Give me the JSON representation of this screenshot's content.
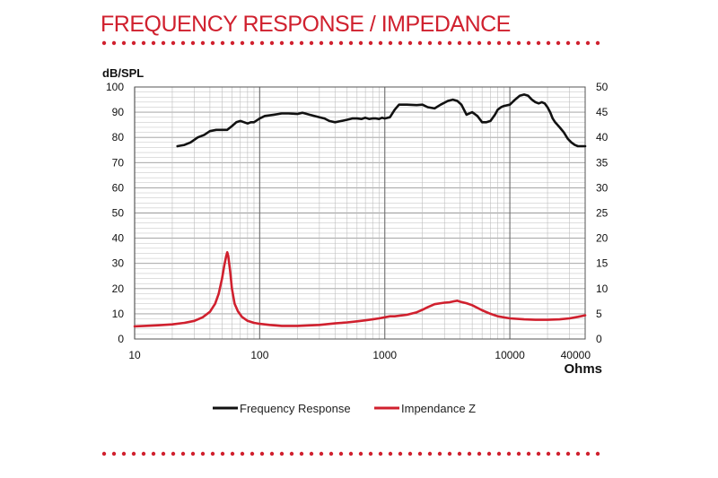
{
  "header": {
    "title": "FREQUENCY RESPONSE / IMPEDANCE"
  },
  "colors": {
    "accent": "#d0202e",
    "freq_line": "#111111",
    "impedance_line": "#d0202e",
    "grid": "#bdbdbd"
  },
  "chart_data": {
    "type": "line",
    "x_scale": "log",
    "xlim": [
      10,
      40000
    ],
    "ylim": [
      0,
      100
    ],
    "y2lim": [
      0,
      50
    ],
    "xlabel": "Ohms",
    "ylabel": "dB/SPL",
    "x_ticks": [
      10,
      100,
      1000,
      10000,
      40000
    ],
    "y_ticks": [
      0,
      10,
      20,
      30,
      40,
      50,
      60,
      70,
      80,
      90,
      100
    ],
    "y2_ticks": [
      0,
      5,
      10,
      15,
      20,
      25,
      30,
      35,
      40,
      45,
      50
    ],
    "legend": "bottom",
    "grid": true,
    "series": [
      {
        "name": "Frequency Response",
        "color": "#111111",
        "axis": "left",
        "x": [
          22,
          25,
          28,
          32,
          36,
          40,
          45,
          50,
          55,
          60,
          65,
          70,
          75,
          80,
          85,
          90,
          100,
          110,
          130,
          150,
          170,
          200,
          220,
          250,
          300,
          330,
          360,
          400,
          450,
          500,
          550,
          600,
          650,
          700,
          750,
          800,
          850,
          900,
          950,
          1000,
          1100,
          1200,
          1300,
          1500,
          1800,
          2000,
          2200,
          2500,
          2800,
          3200,
          3500,
          3800,
          4100,
          4500,
          5000,
          5500,
          6000,
          6500,
          7000,
          7600,
          8000,
          8500,
          9000,
          10000,
          11000,
          12000,
          13000,
          14000,
          15000,
          16000,
          17000,
          18000,
          19000,
          20000,
          21000,
          22000,
          23000,
          25000,
          27000,
          29000,
          31000,
          33000,
          35000,
          37000,
          40000
        ],
        "values": [
          76.5,
          77,
          78,
          80,
          81,
          82.5,
          83,
          83,
          83,
          84.5,
          86,
          86.5,
          86,
          85.5,
          86,
          86,
          87.5,
          88.5,
          89,
          89.5,
          89.5,
          89.3,
          89.8,
          89,
          88,
          87.5,
          86.5,
          86,
          86.5,
          87,
          87.5,
          87.5,
          87.3,
          87.8,
          87.3,
          87.5,
          87.5,
          87.3,
          87.8,
          87.5,
          88,
          91,
          93,
          93,
          92.8,
          93,
          92,
          91.5,
          93,
          94.5,
          95,
          94.5,
          93,
          89,
          90,
          88.5,
          86,
          86,
          86.5,
          89,
          91,
          92,
          92.5,
          93,
          95,
          96.5,
          97,
          96.5,
          95,
          94,
          93.5,
          94,
          93.5,
          92,
          90,
          87.5,
          86,
          84,
          82,
          79.5,
          78,
          77,
          76.5,
          76.5,
          76.5
        ]
      },
      {
        "name": "Impendance Z",
        "color": "#d0202e",
        "axis": "right",
        "x": [
          10,
          15,
          20,
          25,
          30,
          35,
          40,
          44,
          47,
          50,
          52,
          54,
          55,
          56,
          58,
          60,
          63,
          67,
          72,
          80,
          90,
          100,
          120,
          150,
          200,
          300,
          400,
          500,
          600,
          700,
          800,
          900,
          1000,
          1100,
          1200,
          1500,
          1800,
          2000,
          2200,
          2500,
          2800,
          3000,
          3300,
          3600,
          3800,
          4000,
          4500,
          5000,
          6000,
          7000,
          8000,
          10000,
          13000,
          16000,
          20000,
          25000,
          30000,
          35000,
          40000
        ],
        "values": [
          2.5,
          2.7,
          2.9,
          3.2,
          3.6,
          4.3,
          5.4,
          7,
          9,
          12,
          14.5,
          16.5,
          17.2,
          16.5,
          13.5,
          10,
          7,
          5.5,
          4.4,
          3.6,
          3.2,
          3,
          2.8,
          2.6,
          2.6,
          2.8,
          3.1,
          3.3,
          3.5,
          3.7,
          3.9,
          4.1,
          4.3,
          4.5,
          4.5,
          4.8,
          5.3,
          5.8,
          6.3,
          6.9,
          7.1,
          7.2,
          7.3,
          7.5,
          7.6,
          7.4,
          7.1,
          6.7,
          5.7,
          5,
          4.5,
          4.1,
          3.9,
          3.8,
          3.8,
          3.9,
          4.1,
          4.4,
          4.7
        ]
      }
    ]
  }
}
